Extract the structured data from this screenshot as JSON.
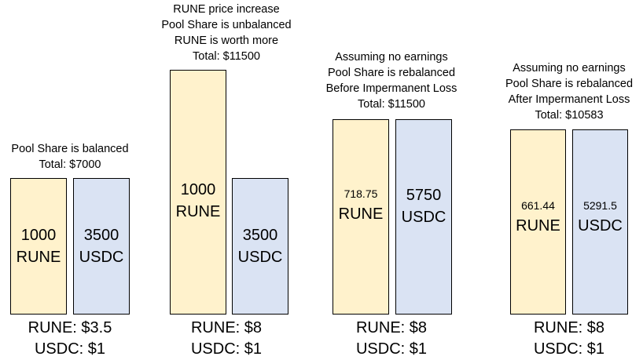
{
  "scenarios": [
    {
      "caption": [
        "",
        "",
        "Pool Share is balanced",
        "Total: $7000"
      ],
      "rune_bar": {
        "amount": "1000",
        "token": "RUNE"
      },
      "usdc_bar": {
        "amount": "3500",
        "token": "USDC"
      },
      "prices": {
        "rune": "RUNE: $3.5",
        "usdc": "USDC: $1"
      },
      "colors": {
        "rune": "#fff2cc",
        "usdc": "#dae3f3"
      }
    },
    {
      "caption": [
        "RUNE price increase",
        "Pool Share is unbalanced",
        "RUNE is worth more",
        "Total: $11500"
      ],
      "rune_bar": {
        "amount": "1000",
        "token": "RUNE"
      },
      "usdc_bar": {
        "amount": "3500",
        "token": "USDC"
      },
      "prices": {
        "rune": "RUNE: $8",
        "usdc": "USDC: $1"
      }
    },
    {
      "caption": [
        "Assuming no earnings",
        "Pool Share is rebalanced",
        "Before Impermanent Loss",
        "Total: $11500"
      ],
      "rune_bar": {
        "amount": "718.75",
        "token": "RUNE"
      },
      "usdc_bar": {
        "amount": "5750",
        "token": "USDC"
      },
      "prices": {
        "rune": "RUNE: $8",
        "usdc": "USDC: $1"
      }
    },
    {
      "caption": [
        "Assuming no earnings",
        "Pool Share is rebalanced",
        "After Impermanent Loss",
        "Total: $10583"
      ],
      "rune_bar": {
        "amount": "661.44",
        "token": "RUNE"
      },
      "usdc_bar": {
        "amount": "5291.5",
        "token": "USDC"
      },
      "prices": {
        "rune": "RUNE: $8",
        "usdc": "USDC: $1"
      }
    }
  ]
}
